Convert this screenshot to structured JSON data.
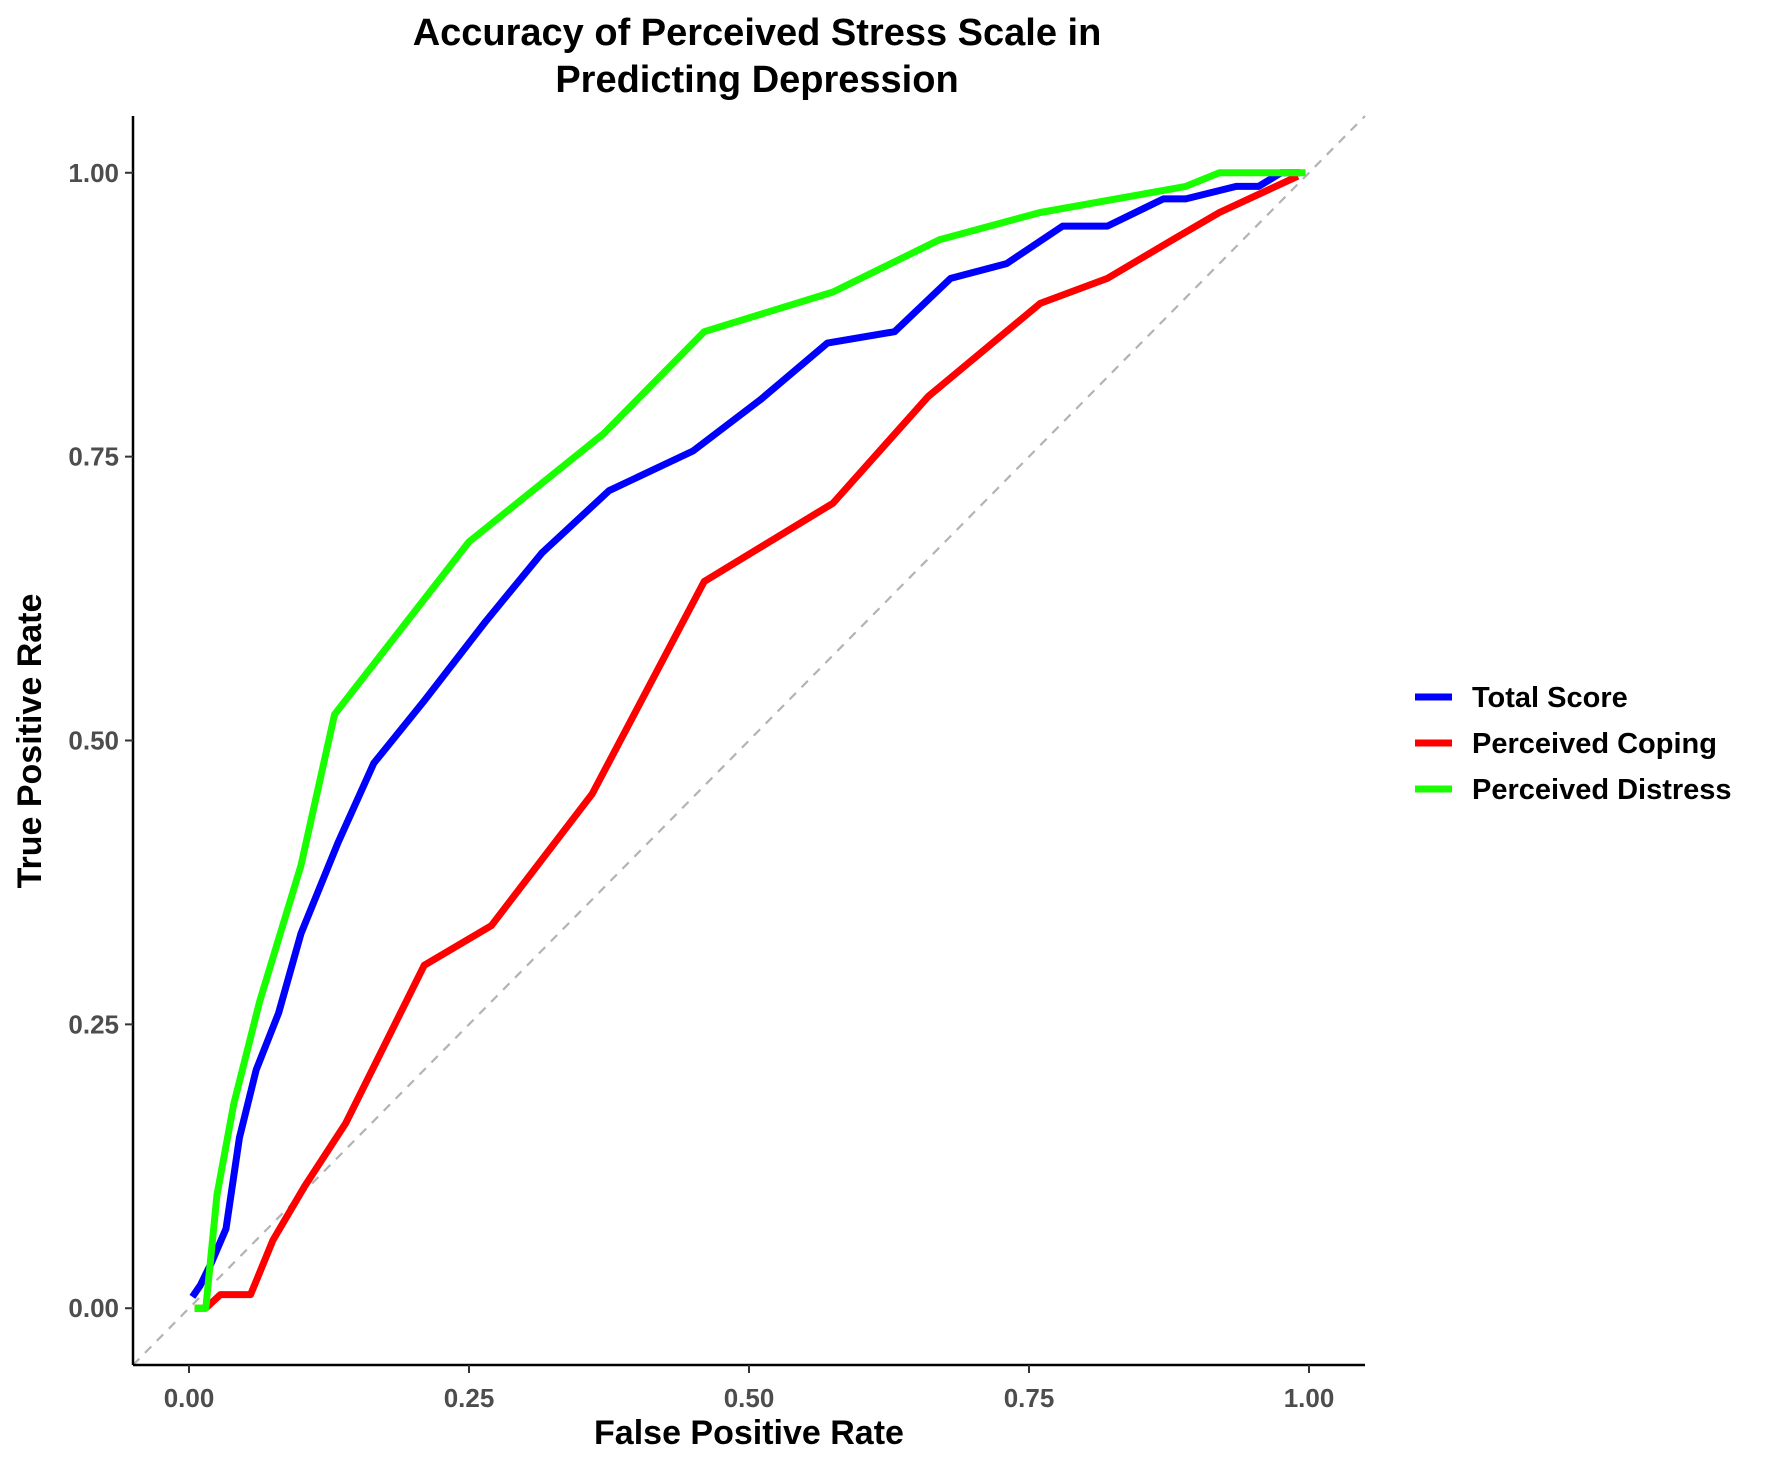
{
  "chart_data": {
    "type": "line",
    "title": [
      "Accuracy of Perceived Stress Scale in",
      "Predicting Depression"
    ],
    "xlabel": "False Positive Rate",
    "ylabel": "True Positive Rate",
    "xlim": [
      -0.05,
      1.05
    ],
    "ylim": [
      -0.05,
      1.05
    ],
    "xticks": [
      0,
      0.25,
      0.5,
      0.75,
      1
    ],
    "yticks": [
      0,
      0.25,
      0.5,
      0.75,
      1
    ],
    "xtick_labels": [
      "0.00",
      "0.25",
      "0.50",
      "0.75",
      "1.00"
    ],
    "ytick_labels": [
      "0.00",
      "0.25",
      "0.50",
      "0.75",
      "1.00"
    ],
    "grid": false,
    "legend_position": "right",
    "reference_line": {
      "from": [
        0,
        0
      ],
      "to": [
        1,
        1
      ],
      "style": "dashed",
      "color": "#b3b3b3"
    },
    "series": [
      {
        "name": "Total Score",
        "color": "#0000ff",
        "points": [
          [
            0.003,
            0.01
          ],
          [
            0.01,
            0.02
          ],
          [
            0.02,
            0.04
          ],
          [
            0.033,
            0.07
          ],
          [
            0.045,
            0.15
          ],
          [
            0.06,
            0.21
          ],
          [
            0.08,
            0.26
          ],
          [
            0.1,
            0.33
          ],
          [
            0.133,
            0.41
          ],
          [
            0.165,
            0.48
          ],
          [
            0.21,
            0.535
          ],
          [
            0.265,
            0.605
          ],
          [
            0.315,
            0.665
          ],
          [
            0.375,
            0.72
          ],
          [
            0.45,
            0.755
          ],
          [
            0.51,
            0.8
          ],
          [
            0.57,
            0.85
          ],
          [
            0.63,
            0.86
          ],
          [
            0.68,
            0.907
          ],
          [
            0.73,
            0.92
          ],
          [
            0.78,
            0.953
          ],
          [
            0.82,
            0.953
          ],
          [
            0.87,
            0.977
          ],
          [
            0.89,
            0.977
          ],
          [
            0.935,
            0.988
          ],
          [
            0.955,
            0.988
          ],
          [
            0.975,
            1.0
          ],
          [
            0.992,
            1.0
          ]
        ]
      },
      {
        "name": "Perceived Coping",
        "color": "#ff0000",
        "points": [
          [
            0.005,
            0.0
          ],
          [
            0.015,
            0.0
          ],
          [
            0.028,
            0.012
          ],
          [
            0.055,
            0.012
          ],
          [
            0.075,
            0.06
          ],
          [
            0.103,
            0.107
          ],
          [
            0.14,
            0.163
          ],
          [
            0.21,
            0.302
          ],
          [
            0.27,
            0.337
          ],
          [
            0.36,
            0.453
          ],
          [
            0.46,
            0.64
          ],
          [
            0.575,
            0.709
          ],
          [
            0.66,
            0.803
          ],
          [
            0.76,
            0.885
          ],
          [
            0.82,
            0.907
          ],
          [
            0.88,
            0.942
          ],
          [
            0.92,
            0.965
          ],
          [
            0.99,
            0.997
          ]
        ]
      },
      {
        "name": "Perceived Distress",
        "color": "#1aff00",
        "points": [
          [
            0.005,
            0.0
          ],
          [
            0.015,
            0.0
          ],
          [
            0.025,
            0.1
          ],
          [
            0.04,
            0.18
          ],
          [
            0.063,
            0.27
          ],
          [
            0.1,
            0.39
          ],
          [
            0.13,
            0.523
          ],
          [
            0.25,
            0.675
          ],
          [
            0.37,
            0.77
          ],
          [
            0.46,
            0.86
          ],
          [
            0.575,
            0.895
          ],
          [
            0.67,
            0.941
          ],
          [
            0.76,
            0.965
          ],
          [
            0.89,
            0.988
          ],
          [
            0.92,
            1.0
          ],
          [
            0.997,
            1.0
          ]
        ]
      }
    ]
  }
}
